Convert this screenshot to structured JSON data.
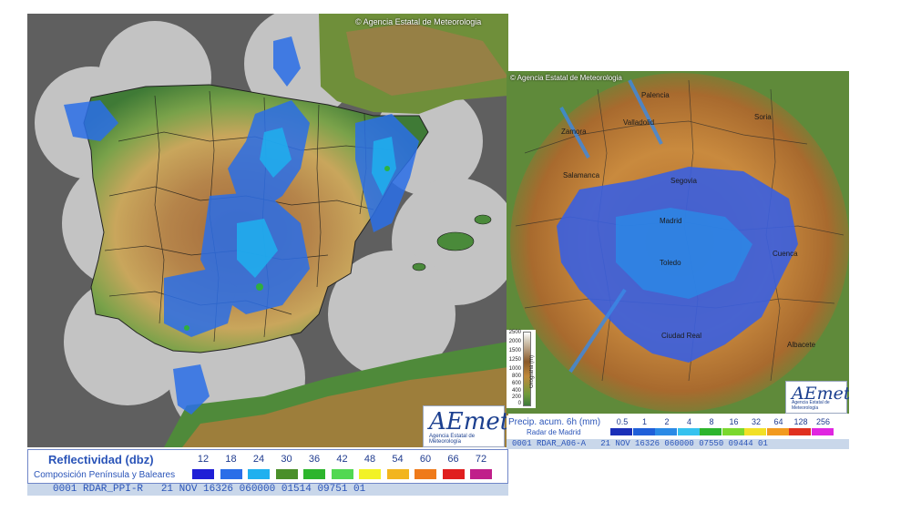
{
  "panel_left": {
    "copyright": "© Agencia Estatal de Meteorologia",
    "logo_text": "AEmet",
    "logo_subtext": "Agencia Estatal de Meteorología",
    "legend_title": "Reflectividad (dbz)",
    "legend_subtitle": "Composición Península y Baleares",
    "legend_values": [
      "12",
      "18",
      "24",
      "30",
      "36",
      "42",
      "48",
      "54",
      "60",
      "66",
      "72"
    ],
    "legend_colors": [
      "#1f1fd6",
      "#2a6ee8",
      "#1fb0ef",
      "#4a8f2a",
      "#2db52d",
      "#52d852",
      "#f2f226",
      "#f2b51f",
      "#ef7a1a",
      "#e01f1f",
      "#c01f8a"
    ],
    "status": "0001 RDAR_PPI-R   21 NOV 16326 060000 01514 09751 01"
  },
  "panel_right": {
    "copyright": "© Agencia Estatal de Meteorologia",
    "logo_text": "AEmet",
    "logo_subtext": "Agencia Estatal de Meteorología",
    "legend_title": "Precip. acum. 6h (mm)",
    "legend_subtitle": "Radar de Madrid",
    "legend_values": [
      "0.5",
      "1",
      "2",
      "4",
      "8",
      "16",
      "32",
      "64",
      "128",
      "256"
    ],
    "legend_colors": [
      "#1a2fb8",
      "#1f5fd9",
      "#2a8ae6",
      "#35c2ef",
      "#2db52d",
      "#7ad82d",
      "#f2e026",
      "#f29a1f",
      "#e0301f",
      "#e026e0"
    ],
    "status": "0001 RDAR_A06-A   21 NOV 16326 060000 07550 09444 01",
    "elevation_label": "Orografía (m)",
    "elevation_ticks": [
      "2500",
      "2000",
      "1500",
      "1250",
      "1000",
      "800",
      "600",
      "400",
      "200",
      "0"
    ],
    "cities": [
      "Palencia",
      "Valladolid",
      "Soria",
      "Zamora",
      "Salamanca",
      "Segovia",
      "Madrid",
      "Toledo",
      "Cuenca",
      "Ciudad Real",
      "Albacete"
    ]
  }
}
